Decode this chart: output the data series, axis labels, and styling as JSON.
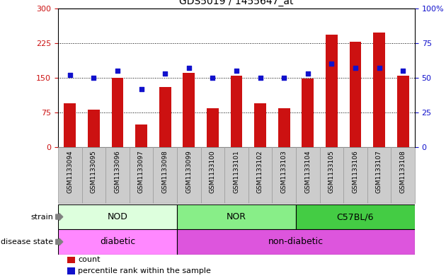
{
  "title": "GDS5019 / 1455647_at",
  "samples": [
    "GSM1133094",
    "GSM1133095",
    "GSM1133096",
    "GSM1133097",
    "GSM1133098",
    "GSM1133099",
    "GSM1133100",
    "GSM1133101",
    "GSM1133102",
    "GSM1133103",
    "GSM1133104",
    "GSM1133105",
    "GSM1133106",
    "GSM1133107",
    "GSM1133108"
  ],
  "counts": [
    95,
    82,
    150,
    50,
    130,
    160,
    85,
    155,
    95,
    85,
    148,
    243,
    228,
    248,
    155
  ],
  "percentiles": [
    52,
    50,
    55,
    42,
    53,
    57,
    50,
    55,
    50,
    50,
    53,
    60,
    57,
    57,
    55
  ],
  "count_color": "#cc1111",
  "percentile_color": "#1111cc",
  "left_ylim": [
    0,
    300
  ],
  "right_ylim": [
    0,
    100
  ],
  "left_yticks": [
    0,
    75,
    150,
    225,
    300
  ],
  "right_yticks": [
    0,
    25,
    50,
    75,
    100
  ],
  "right_yticklabels": [
    "0",
    "25",
    "50",
    "75",
    "100%"
  ],
  "strain_groups": [
    {
      "label": "NOD",
      "start": 0,
      "end": 5,
      "color": "#ddffdd"
    },
    {
      "label": "NOR",
      "start": 5,
      "end": 10,
      "color": "#88ee88"
    },
    {
      "label": "C57BL/6",
      "start": 10,
      "end": 15,
      "color": "#44cc44"
    }
  ],
  "disease_groups": [
    {
      "label": "diabetic",
      "start": 0,
      "end": 5,
      "color": "#ff88ff"
    },
    {
      "label": "non-diabetic",
      "start": 5,
      "end": 15,
      "color": "#dd55dd"
    }
  ],
  "legend_count_label": "count",
  "legend_percentile_label": "percentile rank within the sample",
  "strain_label": "strain",
  "disease_label": "disease state",
  "bar_width": 0.5,
  "tick_box_color": "#cccccc",
  "tick_box_edge_color": "#999999"
}
